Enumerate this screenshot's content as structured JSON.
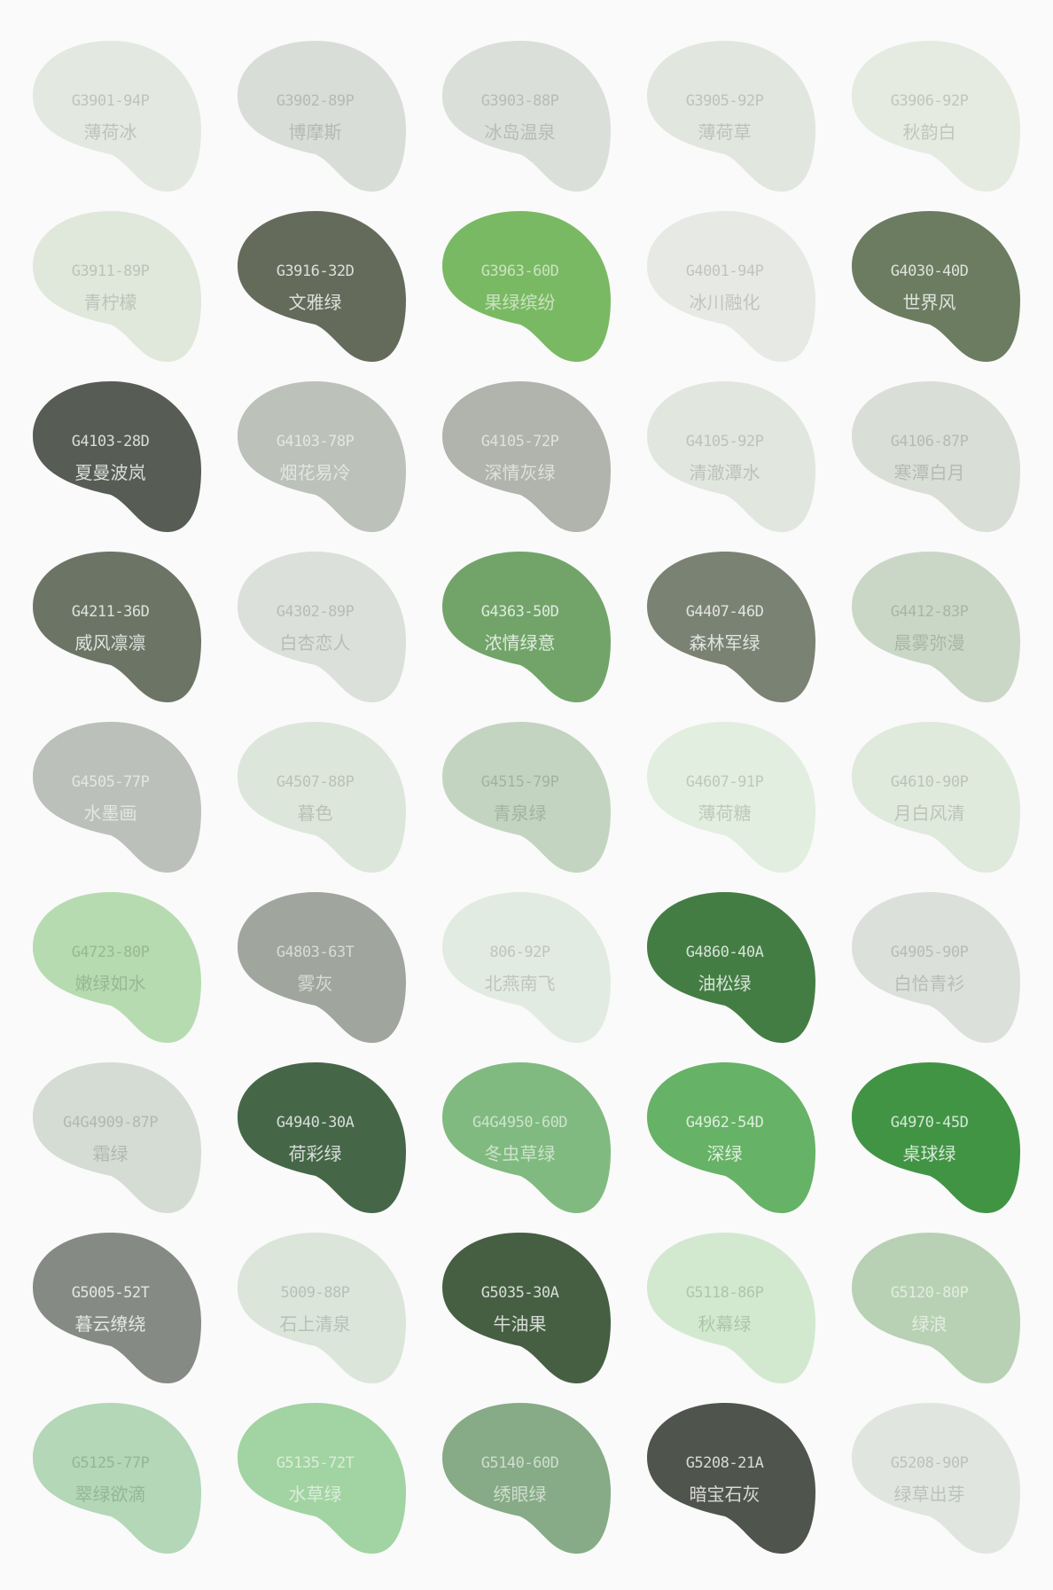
{
  "swatches": [
    {
      "code": "G3901-94P",
      "name": "薄荷冰",
      "color": "#e3e8e1"
    },
    {
      "code": "G3902-89P",
      "name": "博摩斯",
      "color": "#d8ddd7"
    },
    {
      "code": "G3903-88P",
      "name": "冰岛温泉",
      "color": "#dadfd9"
    },
    {
      "code": "G3905-92P",
      "name": "薄荷草",
      "color": "#e1e6df"
    },
    {
      "code": "G3906-92P",
      "name": "秋韵白",
      "color": "#e5ebe0"
    },
    {
      "code": "G3911-89P",
      "name": "青柠檬",
      "color": "#e0e7db"
    },
    {
      "code": "G3916-32D",
      "name": "文雅绿",
      "color": "#646b5b"
    },
    {
      "code": "G3963-60D",
      "name": "果绿缤纷",
      "color": "#7ab963"
    },
    {
      "code": "G4001-94P",
      "name": "冰川融化",
      "color": "#e7e9e4"
    },
    {
      "code": "G4030-40D",
      "name": "世界风",
      "color": "#6b7c60"
    },
    {
      "code": "G4103-28D",
      "name": "夏曼波岚",
      "color": "#575c55"
    },
    {
      "code": "G4103-78P",
      "name": "烟花易冷",
      "color": "#bcc1ba"
    },
    {
      "code": "G4105-72P",
      "name": "深情灰绿",
      "color": "#b0b4ac"
    },
    {
      "code": "G4105-92P",
      "name": "清澈潭水",
      "color": "#e1e6df"
    },
    {
      "code": "G4106-87P",
      "name": "寒潭白月",
      "color": "#d9ded6"
    },
    {
      "code": "G4211-36D",
      "name": "威风凛凛",
      "color": "#6c7565"
    },
    {
      "code": "G4302-89P",
      "name": "白杏恋人",
      "color": "#dbe0da"
    },
    {
      "code": "G4363-50D",
      "name": "浓情绿意",
      "color": "#72a46a"
    },
    {
      "code": "G4407-46D",
      "name": "森林军绿",
      "color": "#7a8273"
    },
    {
      "code": "G4412-83P",
      "name": "晨雾弥漫",
      "color": "#cad7c6"
    },
    {
      "code": "G4505-77P",
      "name": "水墨画",
      "color": "#bcc0ba"
    },
    {
      "code": "G4507-88P",
      "name": "暮色",
      "color": "#dde6db"
    },
    {
      "code": "G4515-79P",
      "name": "青泉绿",
      "color": "#c3d5c0"
    },
    {
      "code": "G4607-91P",
      "name": "薄荷糖",
      "color": "#e2eedf"
    },
    {
      "code": "G4610-90P",
      "name": "月白风清",
      "color": "#dfe9dc"
    },
    {
      "code": "G4723-80P",
      "name": "嫩绿如水",
      "color": "#b6dbb0"
    },
    {
      "code": "G4803-63T",
      "name": "雾灰",
      "color": "#a0a59d"
    },
    {
      "code": "806-92P",
      "name": "北燕南飞",
      "color": "#e2ebe1"
    },
    {
      "code": "G4860-40A",
      "name": "油松绿",
      "color": "#447d44"
    },
    {
      "code": "G4905-90P",
      "name": "白恰青衫",
      "color": "#dbe0da"
    },
    {
      "code": "G4G4909-87P",
      "name": "霜绿",
      "color": "#d4dcd3"
    },
    {
      "code": "G4940-30A",
      "name": "荷彩绿",
      "color": "#466648"
    },
    {
      "code": "G4G4950-60D",
      "name": "冬虫草绿",
      "color": "#80ba80"
    },
    {
      "code": "G4962-54D",
      "name": "深绿",
      "color": "#66b266"
    },
    {
      "code": "G4970-45D",
      "name": "桌球绿",
      "color": "#419444"
    },
    {
      "code": "G5005-52T",
      "name": "暮云缭绕",
      "color": "#868a84"
    },
    {
      "code": "5009-88P",
      "name": "石上清泉",
      "color": "#dbe5da"
    },
    {
      "code": "G5035-30A",
      "name": "牛油果",
      "color": "#465f43"
    },
    {
      "code": "G5118-86P",
      "name": "秋幕绿",
      "color": "#d2e9cf"
    },
    {
      "code": "G5120-80P",
      "name": "绿浪",
      "color": "#b8d1b4"
    },
    {
      "code": "G5125-77P",
      "name": "翠绿欲滴",
      "color": "#b3d7b7"
    },
    {
      "code": "G5135-72T",
      "name": "水草绿",
      "color": "#a2d3a2"
    },
    {
      "code": "G5140-60D",
      "name": "绣眼绿",
      "color": "#86ab86"
    },
    {
      "code": "G5208-21A",
      "name": "暗宝石灰",
      "color": "#4f544d"
    },
    {
      "code": "G5208-90P",
      "name": "绿草出芽",
      "color": "#e0e6df"
    }
  ]
}
